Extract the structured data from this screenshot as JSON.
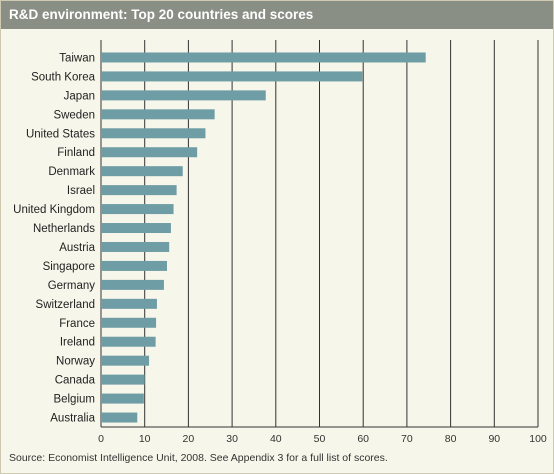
{
  "title": "R&D environment: Top 20 countries and scores",
  "source": "Source: Economist Intelligence Unit, 2008. See Appendix 3 for a full list of scores.",
  "colors": {
    "bar": "#6f9da5",
    "title_bg": "#8a8f86",
    "panel_bg": "#f7f6ea",
    "grid": "#333333"
  },
  "chart_data": {
    "type": "bar",
    "orientation": "horizontal",
    "title": "R&D environment: Top 20 countries and scores",
    "categories": [
      "Taiwan",
      "South Korea",
      "Japan",
      "Sweden",
      "United States",
      "Finland",
      "Denmark",
      "Israel",
      "United Kingdom",
      "Netherlands",
      "Austria",
      "Singapore",
      "Germany",
      "Switzerland",
      "France",
      "Ireland",
      "Norway",
      "Canada",
      "Belgium",
      "Australia"
    ],
    "values": [
      74.3,
      59.8,
      37.7,
      26.0,
      23.9,
      22.0,
      18.7,
      17.3,
      16.6,
      16.0,
      15.6,
      15.1,
      14.4,
      12.8,
      12.6,
      12.5,
      11.0,
      10.0,
      9.8,
      8.3
    ],
    "xlim": [
      0,
      100
    ],
    "xticks": [
      "0",
      "10",
      "20",
      "30",
      "40",
      "50",
      "60",
      "70",
      "80",
      "90",
      "100"
    ],
    "grid": true
  }
}
